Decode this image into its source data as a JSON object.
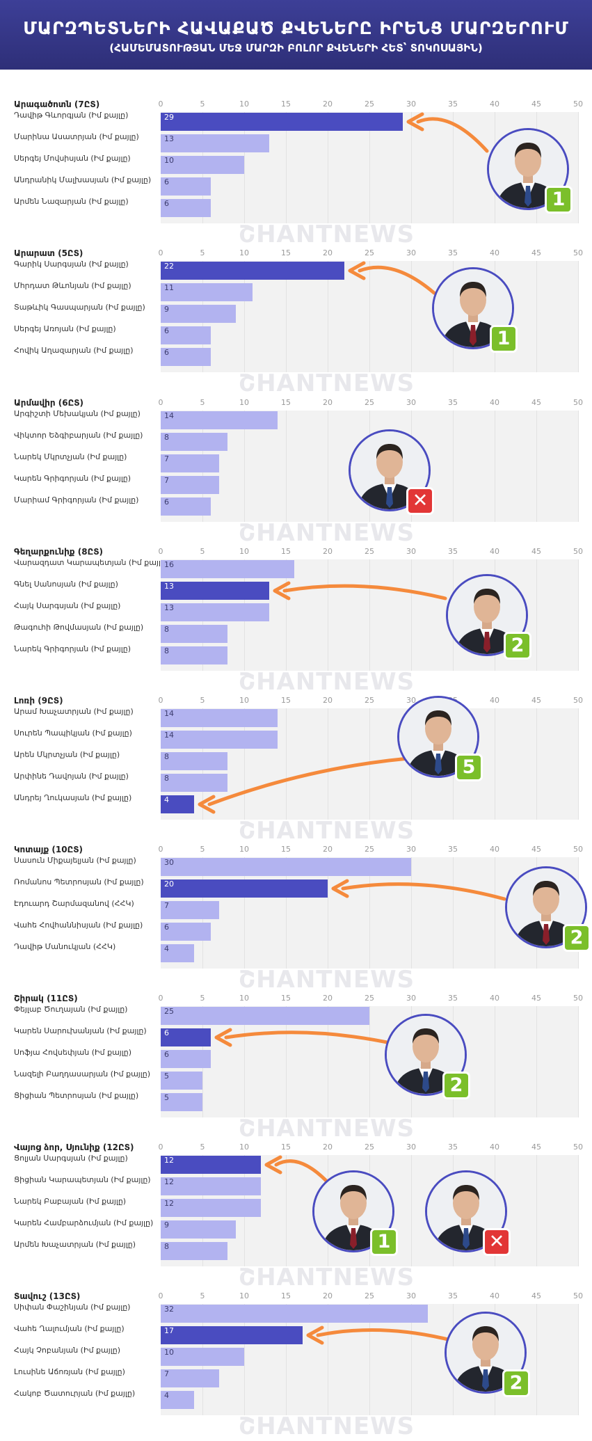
{
  "header": {
    "title": "ՄԱՐԶՊԵՏՆԵՐԻ ՀԱՎԱՔԱԾ ՔՎԵՆԵՐԸ ԻՐԵՆՑ ՄԱՐԶԵՐՈՒՄ",
    "subtitle": "(ՀԱՄԵՄԱՏՈՒԹՅԱՆ ՄԵՋ ՄԱՐԶԻ ԲՈԼՈՐ ՔՎԵՆԵՐԻ ՀԵՏ՝ ՏՈԿՈՍԱՅԻՆ)"
  },
  "watermark": "ՇHANTNEWS",
  "colors": {
    "header": "#2e2f78",
    "bar": "#b2b3f0",
    "highlight": "#4a4cc0",
    "arrow": "#f58a3c",
    "badge_ok": "#7bbf2a",
    "badge_fail": "#e23636"
  },
  "chart_data": [
    {
      "type": "bar",
      "orientation": "horizontal",
      "title": "Արագածոտն (7ԸՏ)",
      "xlim": [
        0,
        50
      ],
      "ticks": [
        0,
        5,
        10,
        15,
        20,
        25,
        30,
        35,
        40,
        45,
        50
      ],
      "categories": [
        "Դավիթ Գևորգյան (Իմ քայլը)",
        "Մարինա Ասատրյան (Իմ քայլը)",
        "Սերգեյ Մովսիսյան (Իմ քայլը)",
        "Անդրանիկ Մալխասյան (Իմ քայլը)",
        "Արմեն Նազարյան (Իմ քայլը)"
      ],
      "values": [
        29,
        13,
        10,
        6,
        6
      ],
      "highlight_index": 0,
      "badge": "1"
    },
    {
      "type": "bar",
      "orientation": "horizontal",
      "title": "Արարատ (5ԸՏ)",
      "xlim": [
        0,
        50
      ],
      "ticks": [
        0,
        5,
        10,
        15,
        20,
        25,
        30,
        35,
        40,
        45,
        50
      ],
      "categories": [
        "Գարիկ Սարգսյան (Իմ քայլը)",
        "Մհրդատ Թևոնյան (Իմ քայլը)",
        "Տաթևիկ Գասպարյան (Իմ քայլը)",
        "Սերգեյ Առոյան (Իմ քայլը)",
        "Հովիկ Աղազարյան (Իմ քայլը)"
      ],
      "values": [
        22,
        11,
        9,
        6,
        6
      ],
      "highlight_index": 0,
      "badge": "1"
    },
    {
      "type": "bar",
      "orientation": "horizontal",
      "title": "Արմավիր (6ԸՏ)",
      "xlim": [
        0,
        50
      ],
      "ticks": [
        0,
        5,
        10,
        15,
        20,
        25,
        30,
        35,
        40,
        45,
        50
      ],
      "categories": [
        "Արգիշտի Մեխակյան (Իմ քայլը)",
        "Վիկտոր Եձգիբարյան (Իմ քայլը)",
        "Նարեկ Մկրտչյան (Իմ քայլը)",
        "Կարեն Գրիգորյան (Իմ քայլը)",
        "Մարիամ Գրիգորյան (Իմ քայլը)"
      ],
      "values": [
        14,
        8,
        7,
        7,
        6
      ],
      "highlight_index": null,
      "badge": "✕"
    },
    {
      "type": "bar",
      "orientation": "horizontal",
      "title": "Գեղարքունիք (8ԸՏ)",
      "xlim": [
        0,
        50
      ],
      "ticks": [
        0,
        5,
        10,
        15,
        20,
        25,
        30,
        35,
        40,
        45,
        50
      ],
      "categories": [
        "Վարազդատ Կարապետյան (Իմ քայլը)",
        "Գնել Սանոսյան (Իմ քայլը)",
        "Հայկ Սարգսյան (Իմ քայլը)",
        "Թագուհի Թովմասյան (Իմ քայլը)",
        "Նարեկ Գրիգորյան (Իմ քայլը)"
      ],
      "values": [
        16,
        13,
        13,
        8,
        8
      ],
      "highlight_index": 1,
      "badge": "2"
    },
    {
      "type": "bar",
      "orientation": "horizontal",
      "title": "Լոռի (9ԸՏ)",
      "xlim": [
        0,
        50
      ],
      "ticks": [
        0,
        5,
        10,
        15,
        20,
        25,
        30,
        35,
        40,
        45,
        50
      ],
      "categories": [
        "Արամ Խաչատրյան (Իմ քայլը)",
        "Սուրեն Պապիկյան (Իմ քայլը)",
        "Արեն Մկրտչյան (Իմ քայլը)",
        "Արփինե Դավոյան (Իմ քայլը)",
        "Անդրեյ Ղուկասյան (Իմ քայլը)"
      ],
      "values": [
        14,
        14,
        8,
        8,
        4
      ],
      "highlight_index": 4,
      "badge": "5"
    },
    {
      "type": "bar",
      "orientation": "horizontal",
      "title": "Կոտայք (10ԸՏ)",
      "xlim": [
        0,
        50
      ],
      "ticks": [
        0,
        5,
        10,
        15,
        20,
        25,
        30,
        35,
        40,
        45,
        50
      ],
      "categories": [
        "Սասուն Միքայելյան (Իմ քայլը)",
        "Ռոմանոս Պետրոսյան (Իմ քայլը)",
        "Էդուարդ Շարմազանով (ՀՀԿ)",
        "Վահե Հովհաննիսյան (Իմ քայլը)",
        "Դավիթ Մանուկյան (ՀՀԿ)"
      ],
      "values": [
        30,
        20,
        7,
        6,
        4
      ],
      "highlight_index": 1,
      "badge": "2"
    },
    {
      "type": "bar",
      "orientation": "horizontal",
      "title": "Շիրակ (11ԸՏ)",
      "xlim": [
        0,
        50
      ],
      "ticks": [
        0,
        5,
        10,
        15,
        20,
        25,
        30,
        35,
        40,
        45,
        50
      ],
      "categories": [
        "Փեյլաբ Ծուղայան (Իմ քայլը)",
        "Կարեն Սարուխանյան (Իմ քայլը)",
        "Սոֆյա Հովսեփյան (Իմ քայլը)",
        "Նազելի Բաղդասարյան (Իմ քայլը)",
        "Ցիցիան Պետրոսյան (Իմ քայլը)"
      ],
      "values": [
        25,
        6,
        6,
        5,
        5
      ],
      "highlight_index": 1,
      "badge": "2"
    },
    {
      "type": "bar",
      "orientation": "horizontal",
      "title": "Վայոց ձոր, Սյունիք (12ԸՏ)",
      "xlim": [
        0,
        50
      ],
      "ticks": [
        0,
        5,
        10,
        15,
        20,
        25,
        30,
        35,
        40,
        45,
        50
      ],
      "categories": [
        "Ցոլյան Սարգսյան (Իմ քայլը)",
        "Ցիցիան Կարապետյան (Իմ քայլը)",
        "Նարեկ Բաբայան (Իմ քայլը)",
        "Կարեն Համբարձումյան (Իմ քայլը)",
        "Արմեն Խաչատրյան (Իմ քայլը)"
      ],
      "values": [
        12,
        12,
        12,
        9,
        8
      ],
      "highlight_index": 0,
      "badge": "1",
      "badge2": "✕"
    },
    {
      "type": "bar",
      "orientation": "horizontal",
      "title": "Տավուշ (13ԸՏ)",
      "xlim": [
        0,
        50
      ],
      "ticks": [
        0,
        5,
        10,
        15,
        20,
        25,
        30,
        35,
        40,
        45,
        50
      ],
      "categories": [
        "Սիփան Փաշինյան (Իմ քայլը)",
        "Վահե Ղալումյան (Իմ քայլը)",
        "Հայկ Չոբանյան (Իմ քայլը)",
        "Լուսինե Աճոռյան (Իմ քայլը)",
        "Հակոբ Ծատուրյան (Իմ քայլը)"
      ],
      "values": [
        32,
        17,
        10,
        7,
        4
      ],
      "highlight_index": 1,
      "badge": "2"
    }
  ]
}
